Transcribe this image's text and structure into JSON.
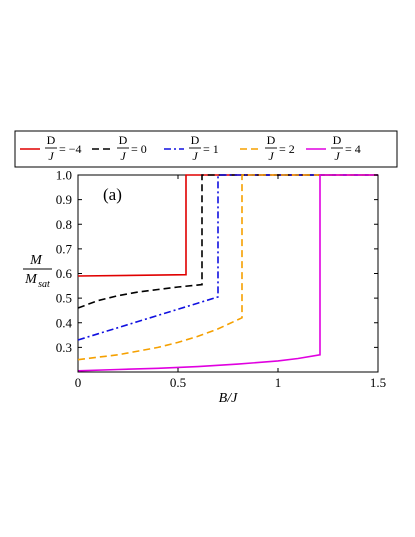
{
  "chart_data": {
    "type": "line",
    "panel_label": "(a)",
    "xlabel": "B/J",
    "ylabel": {
      "numerator": "M",
      "denominator": "M",
      "denominator_subscript": "sat"
    },
    "xlim": [
      0,
      1.5
    ],
    "ylim": [
      0.2,
      1.0
    ],
    "xticks": [
      0,
      0.5,
      1,
      1.5
    ],
    "xtick_labels": [
      "0",
      "0.5",
      "1",
      "1.5"
    ],
    "yticks": [
      0.3,
      0.4,
      0.5,
      0.6,
      0.7,
      0.8,
      0.9,
      1.0
    ],
    "ytick_labels": [
      "0.3",
      "0.4",
      "0.5",
      "0.6",
      "0.7",
      "0.8",
      "0.9",
      "1.0"
    ],
    "grid": false,
    "legend_position": "top",
    "legend_fraction": {
      "numerator": "D",
      "denominator": "J"
    },
    "series": [
      {
        "name": "-4",
        "label_value": "= −4",
        "color": "#e00000",
        "dash": "solid",
        "x": [
          0,
          0.54,
          0.54,
          1.5
        ],
        "y": [
          0.59,
          0.595,
          1.0,
          1.0
        ]
      },
      {
        "name": "0",
        "label_value": "= 0",
        "color": "#000000",
        "dash": "dashed",
        "x": [
          0,
          0.1,
          0.2,
          0.3,
          0.4,
          0.5,
          0.62,
          0.62,
          1.5
        ],
        "y": [
          0.46,
          0.49,
          0.51,
          0.525,
          0.535,
          0.545,
          0.555,
          1.0,
          1.0
        ]
      },
      {
        "name": "1",
        "label_value": "= 1",
        "color": "#1010e0",
        "dash": "dashdot",
        "x": [
          0,
          0.1,
          0.2,
          0.3,
          0.4,
          0.5,
          0.6,
          0.7,
          0.7,
          1.5
        ],
        "y": [
          0.33,
          0.355,
          0.38,
          0.405,
          0.43,
          0.455,
          0.48,
          0.505,
          1.0,
          1.0
        ]
      },
      {
        "name": "2",
        "label_value": "= 2",
        "color": "#f5a000",
        "dash": "dashed",
        "x": [
          0,
          0.1,
          0.2,
          0.3,
          0.4,
          0.5,
          0.6,
          0.7,
          0.82,
          0.82,
          1.5
        ],
        "y": [
          0.25,
          0.26,
          0.27,
          0.285,
          0.3,
          0.32,
          0.345,
          0.375,
          0.42,
          1.0,
          1.0
        ]
      },
      {
        "name": "4",
        "label_value": "= 4",
        "color": "#e000e0",
        "dash": "solid",
        "x": [
          0,
          0.2,
          0.4,
          0.6,
          0.8,
          1.0,
          1.1,
          1.21,
          1.21,
          1.5
        ],
        "y": [
          0.205,
          0.21,
          0.215,
          0.222,
          0.232,
          0.245,
          0.255,
          0.27,
          1.0,
          1.0
        ]
      }
    ]
  }
}
